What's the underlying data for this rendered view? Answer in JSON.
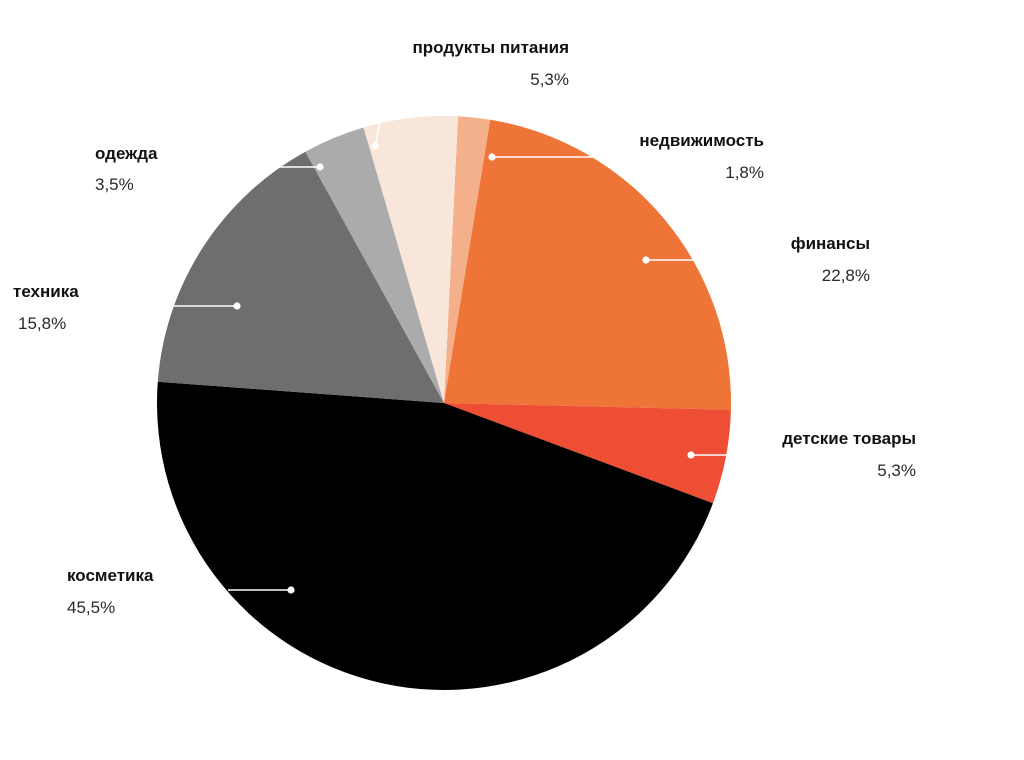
{
  "chart_data": {
    "type": "pie",
    "title": "",
    "start_category": "недвижимость",
    "direction": "clockwise",
    "slices": [
      {
        "label": "недвижимость",
        "value": 1.8,
        "value_text": "1,8%",
        "color": "#F4B08A"
      },
      {
        "label": "финансы",
        "value": 22.8,
        "value_text": "22,8%",
        "color": "#EE7438"
      },
      {
        "label": "детские товары",
        "value": 5.3,
        "value_text": "5,3%",
        "color": "#EE4E33"
      },
      {
        "label": "косметика",
        "value": 45.5,
        "value_text": "45,5%",
        "color": "#000000"
      },
      {
        "label": "техника",
        "value": 15.8,
        "value_text": "15,8%",
        "color": "#6E6E6E"
      },
      {
        "label": "одежда",
        "value": 3.5,
        "value_text": "3,5%",
        "color": "#ABABAB"
      },
      {
        "label": "продукты питания",
        "value": 5.3,
        "value_text": "5,3%",
        "color": "#F9E6DA"
      }
    ]
  }
}
